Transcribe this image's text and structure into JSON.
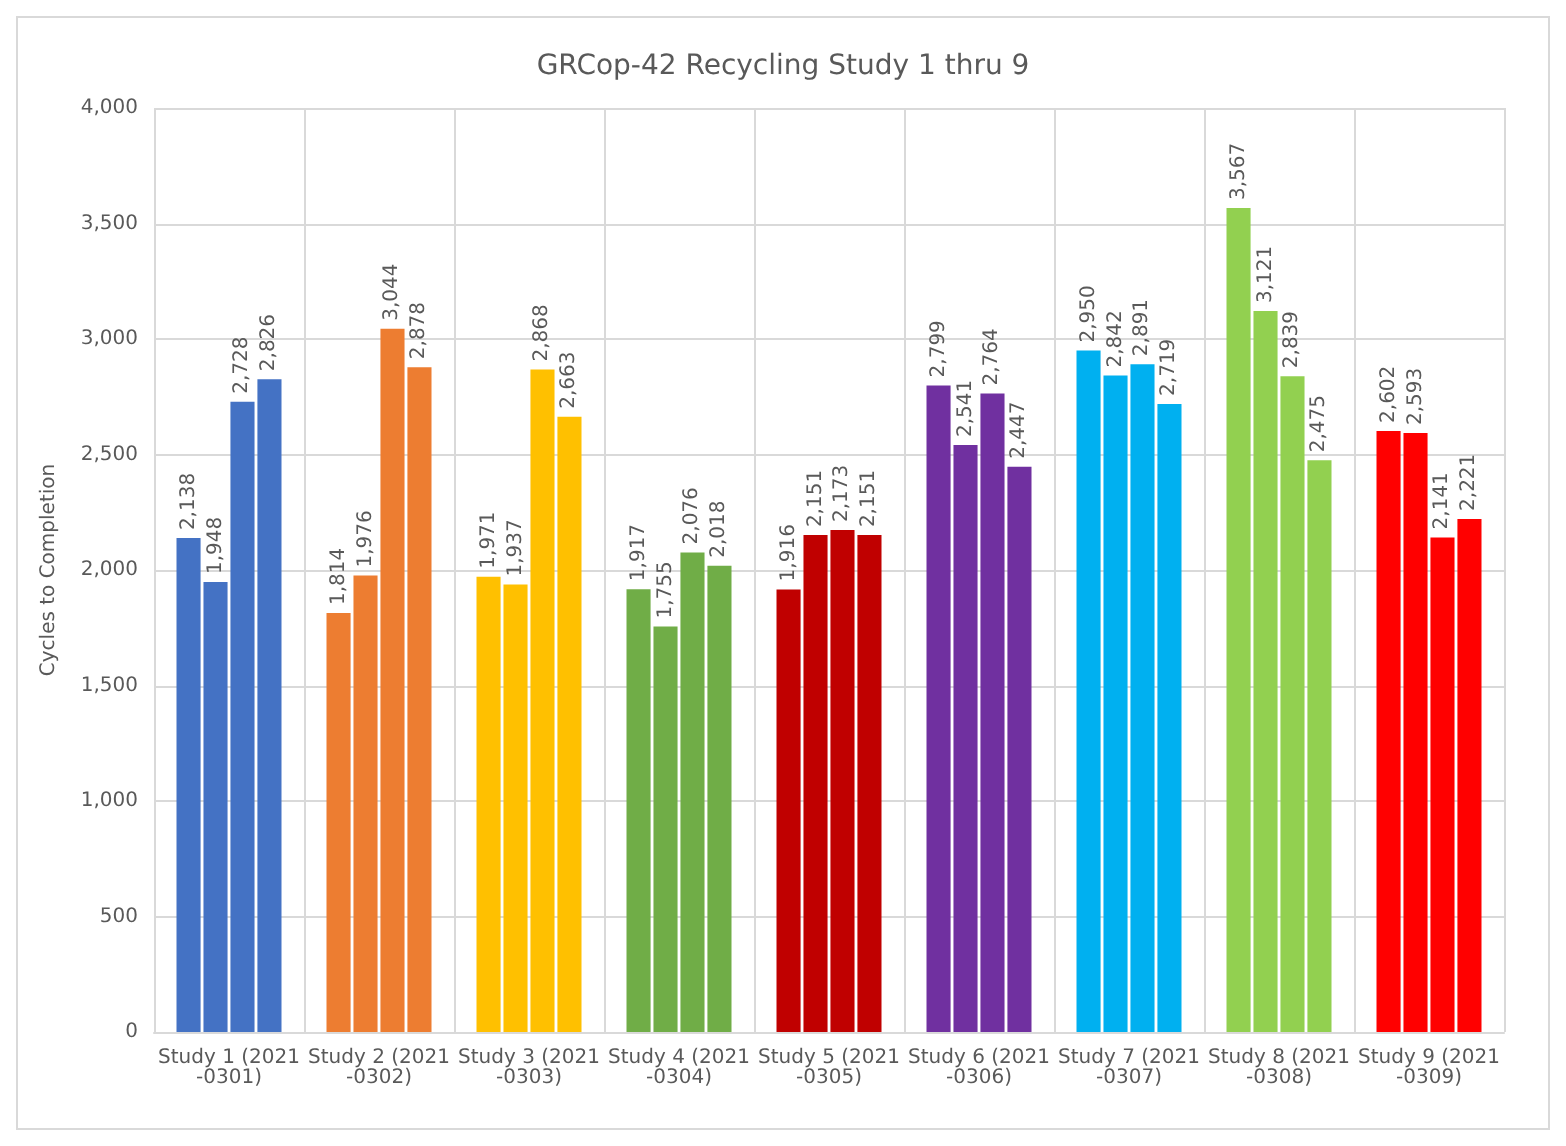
{
  "chart_data": {
    "type": "bar",
    "title": "GRCop-42 Recycling Study 1 thru 9",
    "ylabel": "Cycles to Completion",
    "categories": [
      "Study 1 (2021-0301)",
      "Study 2 (2021-0302)",
      "Study 3 (2021-0303)",
      "Study 4 (2021-0304)",
      "Study 5 (2021-0305)",
      "Study 6 (2021-0306)",
      "Study 7 (2021-0307)",
      "Study 8 (2021-0308)",
      "Study 9 (2021-0309)"
    ],
    "series": [
      {
        "colors": [
          "#4472c4",
          "#ed7d31",
          "#ffc000",
          "#70ad47",
          "#c00000",
          "#7030a0",
          "#00b0f0",
          "#92d050",
          "#ff0000"
        ],
        "values": [
          2138,
          1814,
          1971,
          1917,
          1916,
          2799,
          2950,
          3567,
          2602
        ],
        "value_labels": [
          "2,138",
          "1,814",
          "1,971",
          "1,917",
          "1,916",
          "2,799",
          "2,950",
          "3,567",
          "2,602"
        ]
      },
      {
        "colors": [
          "#4472c4",
          "#ed7d31",
          "#ffc000",
          "#70ad47",
          "#c00000",
          "#7030a0",
          "#00b0f0",
          "#92d050",
          "#ff0000"
        ],
        "values": [
          1948,
          1976,
          1937,
          1755,
          2151,
          2541,
          2842,
          3121,
          2593
        ],
        "value_labels": [
          "1,948",
          "1,976",
          "1,937",
          "1,755",
          "2,151",
          "2,541",
          "2,842",
          "3,121",
          "2,593"
        ]
      },
      {
        "colors": [
          "#4472c4",
          "#ed7d31",
          "#ffc000",
          "#70ad47",
          "#c00000",
          "#7030a0",
          "#00b0f0",
          "#92d050",
          "#ff0000"
        ],
        "values": [
          2728,
          3044,
          2868,
          2076,
          2173,
          2764,
          2891,
          2839,
          2141
        ],
        "value_labels": [
          "2,728",
          "3,044",
          "2,868",
          "2,076",
          "2,173",
          "2,764",
          "2,891",
          "2,839",
          "2,141"
        ]
      },
      {
        "colors": [
          "#4472c4",
          "#ed7d31",
          "#ffc000",
          "#70ad47",
          "#c00000",
          "#7030a0",
          "#00b0f0",
          "#92d050",
          "#ff0000"
        ],
        "values": [
          2826,
          2878,
          2663,
          2018,
          2151,
          2447,
          2719,
          2475,
          2221
        ],
        "value_labels": [
          "2,826",
          "2,878",
          "2,663",
          "2,018",
          "2,151",
          "2,447",
          "2,719",
          "2,475",
          "2,221"
        ]
      }
    ],
    "ylim": [
      0,
      4000
    ],
    "yticks": [
      {
        "value": 0,
        "label": "0"
      },
      {
        "value": 500,
        "label": "500"
      },
      {
        "value": 1000,
        "label": "1,000"
      },
      {
        "value": 1500,
        "label": "1,500"
      },
      {
        "value": 2000,
        "label": "2,000"
      },
      {
        "value": 2500,
        "label": "2,500"
      },
      {
        "value": 3000,
        "label": "3,000"
      },
      {
        "value": 3500,
        "label": "3,500"
      },
      {
        "value": 4000,
        "label": "4,000"
      }
    ],
    "grid": true
  }
}
